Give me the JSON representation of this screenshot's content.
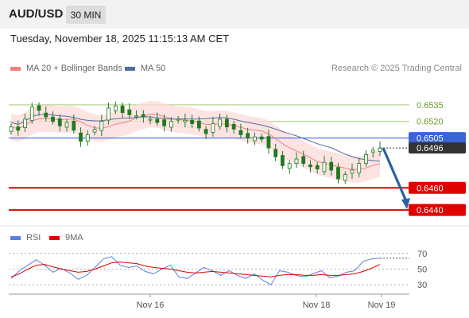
{
  "header": {
    "symbol": "AUD/USD",
    "timeframe": "30 MIN"
  },
  "datetime": "Tuesday, November 18, 2025 11:15:13 AM CET",
  "legend": {
    "ma20_label": "MA 20 + Bollinger Bands",
    "ma50_label": "MA 50",
    "credit": "Research © 2025 Trading Central"
  },
  "rsi_legend": {
    "rsi_label": "RSI",
    "ma_label": "9MA"
  },
  "colors": {
    "ma20": "#f08080",
    "ma50": "#4e6fa6",
    "band_fill": "#fdd9d9",
    "candle": "#1f7a1f",
    "current_line": "#5577dd",
    "support": "#e00000",
    "resistance": "#a6c97a",
    "arrow": "#2a5fa8",
    "rsi": "#5b7fe0",
    "rsi_ma": "#e00000"
  },
  "chart_data": [
    {
      "type": "candlestick",
      "title": "AUD/USD 30 MIN",
      "ylim": [
        0.6425,
        0.656
      ],
      "x_labels": [
        "Nov 16",
        "Nov 18",
        "Nov 19"
      ],
      "current_price": "0.6505",
      "last_price": "0.6496",
      "levels": {
        "resistance": [
          "0.6535",
          "0.6520"
        ],
        "support": [
          "0.6460",
          "0.6440"
        ]
      },
      "forecast": "down",
      "close_path": [
        0.6515,
        0.6512,
        0.6522,
        0.6533,
        0.653,
        0.6524,
        0.652,
        0.6516,
        0.6519,
        0.6512,
        0.6502,
        0.6508,
        0.6513,
        0.652,
        0.6532,
        0.6534,
        0.6528,
        0.6526,
        0.6525,
        0.6524,
        0.6522,
        0.6519,
        0.6516,
        0.652,
        0.6522,
        0.6521,
        0.6518,
        0.6514,
        0.6509,
        0.6518,
        0.6522,
        0.6515,
        0.6513,
        0.6508,
        0.6505,
        0.6506,
        0.6504,
        0.6496,
        0.6488,
        0.648,
        0.6482,
        0.6486,
        0.6482,
        0.6479,
        0.6477,
        0.6483,
        0.6476,
        0.6468,
        0.6472,
        0.6476,
        0.6482,
        0.649,
        0.6494,
        0.6496
      ]
    },
    {
      "type": "line",
      "title": "RSI",
      "yticks": [
        "70",
        "50",
        "30"
      ],
      "ylim": [
        20,
        80
      ],
      "series": [
        {
          "name": "RSI",
          "values": [
            38,
            48,
            55,
            62,
            55,
            46,
            51,
            45,
            37,
            42,
            52,
            63,
            66,
            55,
            52,
            54,
            47,
            44,
            50,
            55,
            40,
            38,
            45,
            52,
            48,
            42,
            48,
            42,
            38,
            44,
            36,
            30,
            48,
            46,
            42,
            40,
            44,
            48,
            39,
            41,
            46,
            48,
            60,
            63,
            64
          ]
        },
        {
          "name": "9MA",
          "values": [
            40,
            44,
            50,
            55,
            56,
            53,
            50,
            48,
            46,
            47,
            50,
            54,
            58,
            59,
            58,
            57,
            54,
            52,
            51,
            50,
            48,
            46,
            45,
            46,
            47,
            46,
            45,
            44,
            43,
            42,
            41,
            40,
            42,
            43,
            43,
            42,
            42,
            43,
            42,
            42,
            43,
            44,
            47,
            51,
            56
          ]
        }
      ]
    }
  ]
}
